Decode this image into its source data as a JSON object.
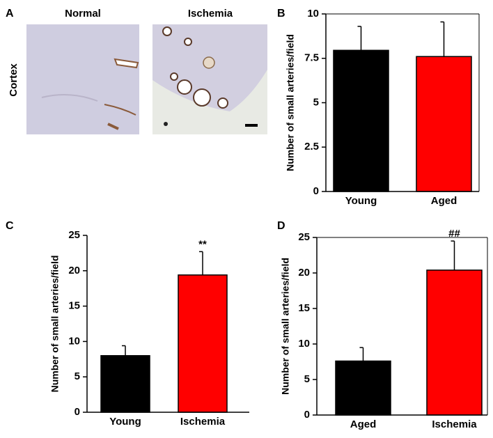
{
  "figure": {
    "panel_a": {
      "label": "A",
      "row_label": "Cortex",
      "columns": [
        "Normal",
        "Ischemia"
      ]
    }
  },
  "chart_data": [
    {
      "type": "bar",
      "panel_label": "B",
      "y_label": "Number of small arteries/field",
      "categories": [
        "Young",
        "Aged"
      ],
      "values": [
        7.95,
        7.6
      ],
      "errors": [
        1.35,
        1.95
      ],
      "colors": [
        "#000000",
        "#ff0000"
      ],
      "value_annotations": [
        null,
        null
      ],
      "ylim": [
        0,
        10
      ],
      "yticks": [
        0,
        2.5,
        5,
        7.5,
        10
      ],
      "frame": true
    },
    {
      "type": "bar",
      "panel_label": "C",
      "y_label": "Number of small arteries/field",
      "categories": [
        "Young",
        "Ischemia"
      ],
      "values": [
        8.0,
        19.4
      ],
      "errors": [
        1.4,
        3.3
      ],
      "colors": [
        "#000000",
        "#ff0000"
      ],
      "value_annotations": [
        null,
        "**"
      ],
      "ylim": [
        0,
        25
      ],
      "yticks": [
        0,
        5,
        10,
        15,
        20,
        25
      ],
      "frame": false
    },
    {
      "type": "bar",
      "panel_label": "D",
      "y_label": "Number of small arteries/field",
      "categories": [
        "Aged",
        "Ischemia"
      ],
      "values": [
        7.6,
        20.4
      ],
      "errors": [
        1.9,
        4.1
      ],
      "colors": [
        "#000000",
        "#ff0000"
      ],
      "value_annotations": [
        null,
        "##"
      ],
      "ylim": [
        0,
        25
      ],
      "yticks": [
        0,
        5,
        10,
        15,
        20,
        25
      ],
      "frame": true
    }
  ]
}
